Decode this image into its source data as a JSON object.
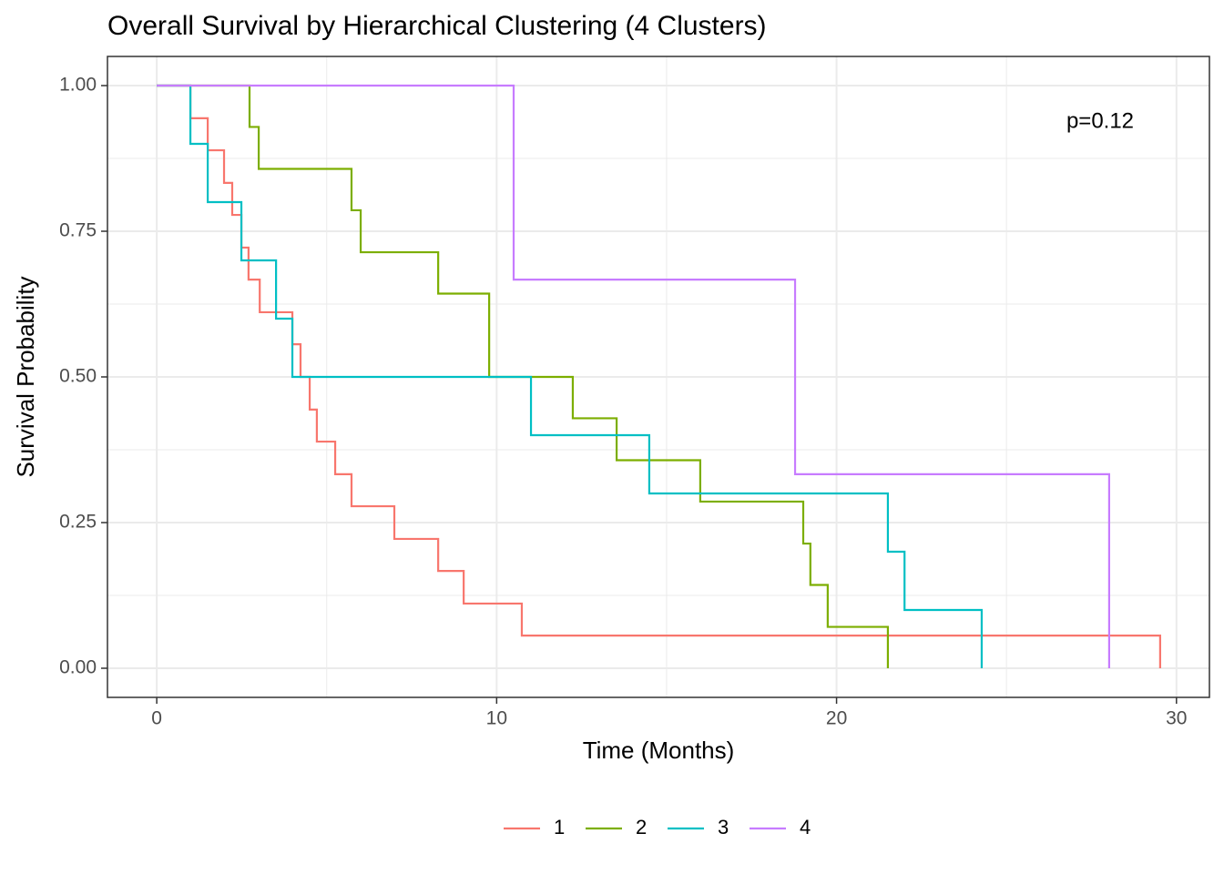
{
  "chart_data": {
    "type": "line",
    "step": true,
    "title": "Overall Survival by Hierarchical Clustering (4 Clusters)",
    "x_label": "Time (Months)",
    "y_label": "Survival Probability",
    "annotation": "p=0.12",
    "xlim": [
      -1.45,
      30.97
    ],
    "ylim": [
      -0.05,
      1.05
    ],
    "xticks": [
      0,
      10,
      20,
      30
    ],
    "yticks": [
      {
        "value": 0,
        "label": "0.00"
      },
      {
        "value": 0.25,
        "label": "0.25"
      },
      {
        "value": 0.5,
        "label": "0.50"
      },
      {
        "value": 0.75,
        "label": "0.75"
      },
      {
        "value": 1,
        "label": "1.00"
      }
    ],
    "grid": true,
    "legend": "bottom",
    "series": [
      {
        "name": "1",
        "color": "#F8766D",
        "x": [
          0,
          0.99,
          1.5,
          1.98,
          2.22,
          2.49,
          2.7,
          3.03,
          3.99,
          4.23,
          4.5,
          4.71,
          5.25,
          5.73,
          6.99,
          8.28,
          9.03,
          10.74,
          29.52
        ],
        "values": [
          1,
          0.944,
          0.889,
          0.833,
          0.778,
          0.722,
          0.667,
          0.611,
          0.556,
          0.5,
          0.444,
          0.389,
          0.333,
          0.278,
          0.222,
          0.167,
          0.111,
          0.056,
          0
        ]
      },
      {
        "name": "2",
        "color": "#7CAE00",
        "x": [
          0,
          2.73,
          3.0,
          5.73,
          6.0,
          8.28,
          9.78,
          12.24,
          13.53,
          15.99,
          19.02,
          19.23,
          19.74,
          21.51
        ],
        "values": [
          1,
          0.929,
          0.857,
          0.786,
          0.714,
          0.643,
          0.5,
          0.429,
          0.357,
          0.286,
          0.214,
          0.143,
          0.071,
          0
        ]
      },
      {
        "name": "3",
        "color": "#00BFC4",
        "x": [
          0,
          0.99,
          1.5,
          2.49,
          3.51,
          3.99,
          11.01,
          14.49,
          21.51,
          22.0,
          24.27
        ],
        "values": [
          1,
          0.9,
          0.8,
          0.7,
          0.6,
          0.5,
          0.4,
          0.3,
          0.2,
          0.1,
          0
        ]
      },
      {
        "name": "4",
        "color": "#C77CFF",
        "x": [
          0,
          10.5,
          18.78,
          28.02
        ],
        "values": [
          1,
          0.667,
          0.333,
          0
        ]
      }
    ]
  }
}
